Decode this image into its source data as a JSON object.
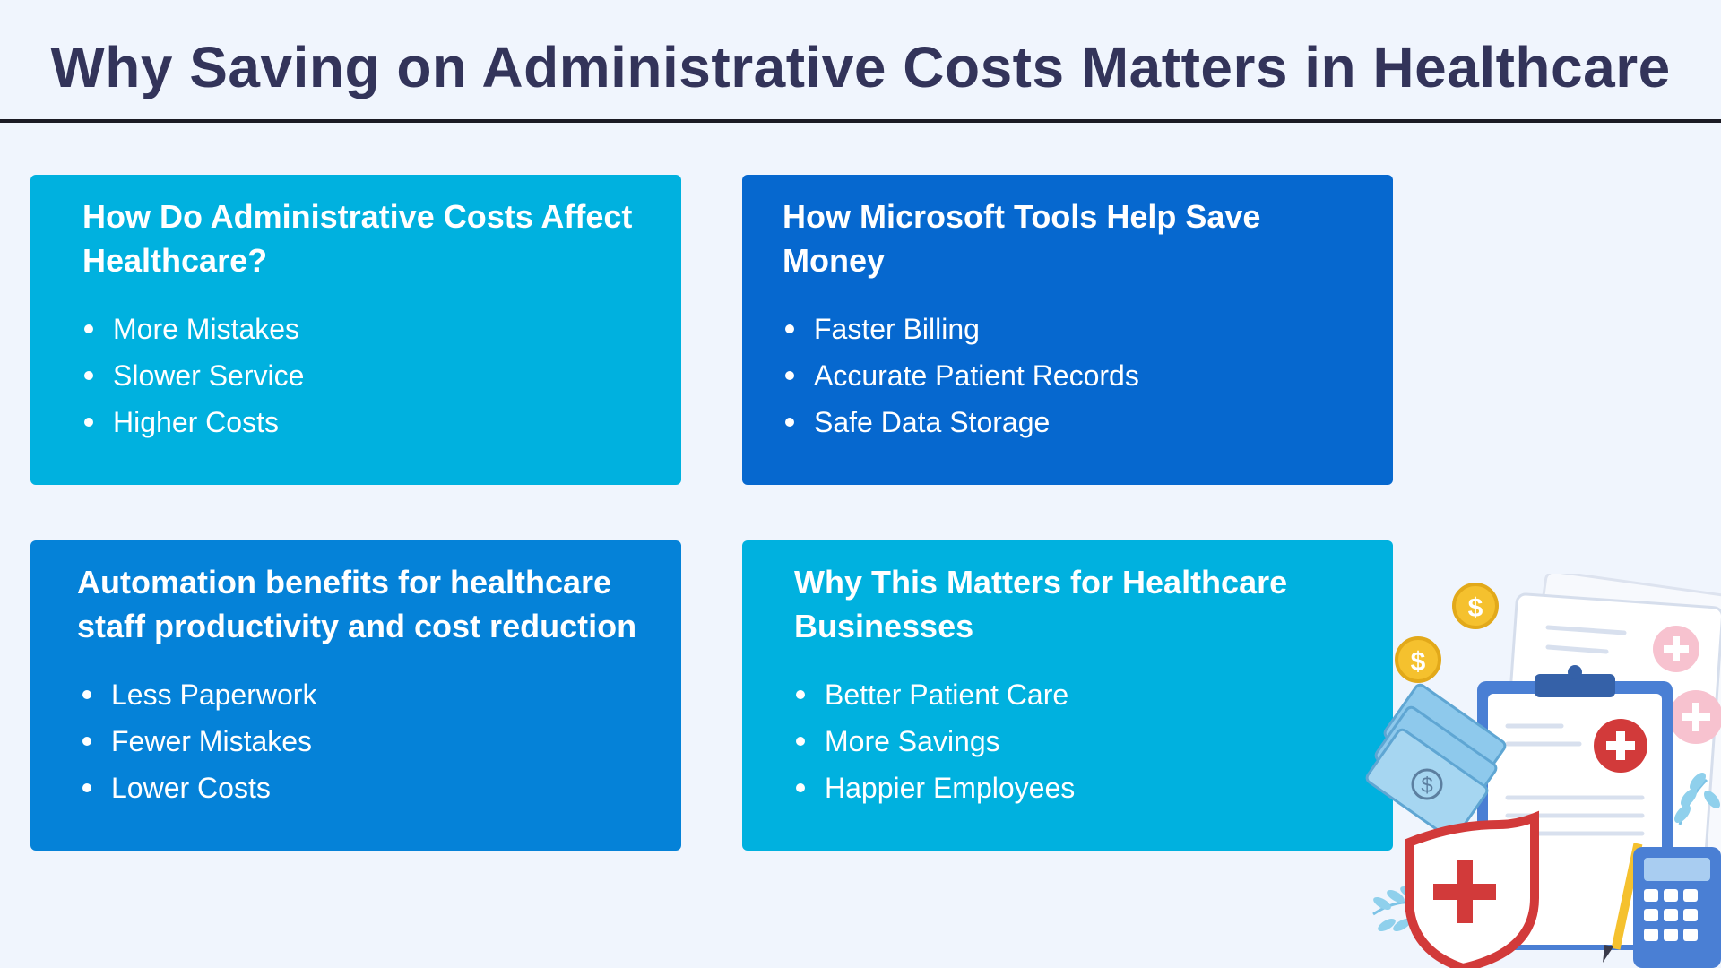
{
  "slide": {
    "title": "Why Saving on Administrative Costs Matters in Healthcare"
  },
  "cards": [
    {
      "heading": "How Do Administrative Costs Affect Healthcare?",
      "items": [
        "More Mistakes",
        "Slower Service",
        "Higher Costs"
      ],
      "color": "#00b1df"
    },
    {
      "heading": "How Microsoft Tools Help Save Money",
      "items": [
        "Faster Billing",
        "Accurate Patient Records",
        "Safe Data Storage"
      ],
      "color": "#0668cf"
    },
    {
      "heading": "Automation benefits for healthcare staff productivity and cost reduction",
      "items": [
        "Less Paperwork",
        "Fewer Mistakes",
        "Lower Costs"
      ],
      "color": "#0582d8"
    },
    {
      "heading": "Why This Matters for Healthcare Businesses",
      "items": [
        "Better Patient Care",
        "More Savings",
        "Happier Employees"
      ],
      "color": "#00b1df"
    }
  ],
  "illustration": {
    "icons": [
      "dollar-coin-icon",
      "clipboard-icon",
      "medical-cross-icon",
      "money-bills-icon",
      "shield-icon",
      "calculator-icon",
      "pencil-icon",
      "leaf-branch-icon"
    ],
    "colors": {
      "coin": "#f5c12e",
      "clipboard": "#4a7fd4",
      "cross_red": "#d23a3a",
      "bills": "#8ec9ec",
      "paper": "#ffffff",
      "accent_pink": "#f7c2cf"
    }
  }
}
